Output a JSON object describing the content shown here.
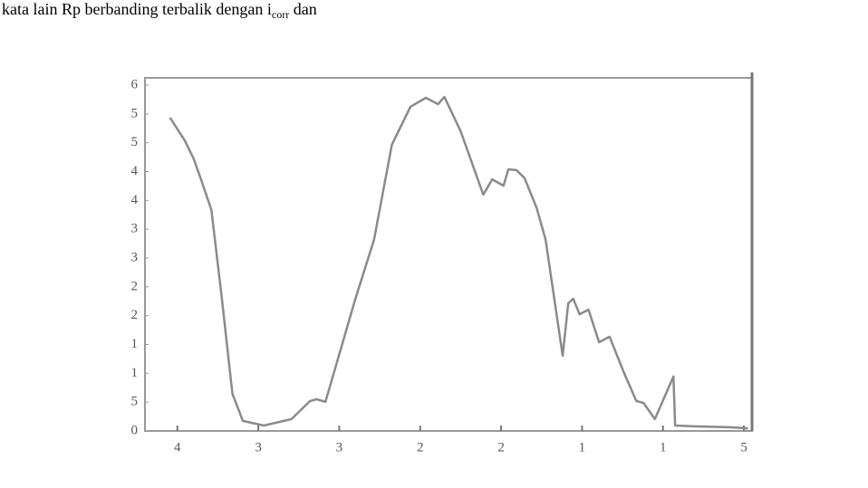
{
  "text": {
    "before": "kata lain Rp berbanding terbalik dengan i",
    "subscript": "corr",
    "after": " dan"
  },
  "chart_data": {
    "type": "line",
    "x": [
      -0.09,
      0.09,
      0.2,
      0.3,
      0.42,
      0.55,
      0.68,
      0.81,
      1.07,
      1.41,
      1.64,
      1.72,
      1.83,
      2.2,
      2.43,
      2.65,
      2.88,
      3.07,
      3.22,
      3.3,
      3.5,
      3.78,
      3.89,
      4.03,
      4.09,
      4.19,
      4.29,
      4.44,
      4.55,
      4.76,
      4.83,
      4.89,
      4.97,
      5.08,
      5.21,
      5.34,
      5.51,
      5.67,
      5.76,
      5.9,
      6.13,
      6.15,
      6.38,
      6.83,
      7.05
    ],
    "series": [
      {
        "color": "#8a8a8a",
        "values": [
          10.87,
          10.08,
          9.46,
          8.67,
          7.67,
          4.59,
          1.29,
          0.35,
          0.19,
          0.41,
          1.04,
          1.1,
          1.01,
          4.59,
          6.63,
          9.93,
          11.25,
          11.56,
          11.34,
          11.59,
          10.4,
          8.2,
          8.73,
          8.51,
          9.08,
          9.05,
          8.77,
          7.73,
          6.63,
          2.61,
          4.43,
          4.59,
          4.05,
          4.21,
          3.08,
          3.27,
          2.07,
          1.04,
          0.97,
          0.41,
          1.89,
          0.19,
          0.16,
          0.13,
          0.09
        ]
      }
    ],
    "xlim": [
      -0.4,
      7.1
    ],
    "ylim": [
      0,
      12
    ],
    "xticks": [
      {
        "value": 0,
        "label": "4"
      },
      {
        "value": 1,
        "label": "3"
      },
      {
        "value": 2,
        "label": "3"
      },
      {
        "value": 3,
        "label": "2"
      },
      {
        "value": 4,
        "label": "2"
      },
      {
        "value": 5,
        "label": "1"
      },
      {
        "value": 6,
        "label": "1"
      },
      {
        "value": 7,
        "label": "5"
      }
    ],
    "yticks": [
      0,
      {
        "value": 1,
        "label": "5"
      },
      {
        "value": 2,
        "label": "1"
      },
      {
        "value": 3,
        "label": "1"
      },
      {
        "value": 4,
        "label": "2"
      },
      {
        "value": 5,
        "label": "2"
      },
      {
        "value": 6,
        "label": "3"
      },
      {
        "value": 7,
        "label": "3"
      },
      {
        "value": 8,
        "label": "4"
      },
      {
        "value": 9,
        "label": "4"
      },
      {
        "value": 10,
        "label": "5"
      },
      {
        "value": 11,
        "label": "5"
      },
      {
        "value": 12,
        "label": "6"
      }
    ]
  }
}
